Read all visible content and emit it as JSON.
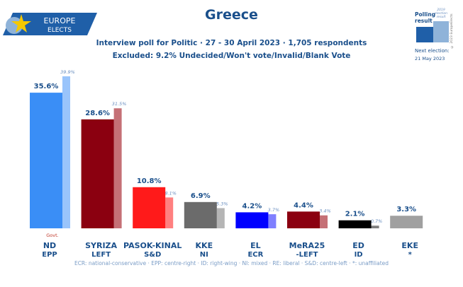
{
  "brand": {
    "line1": "EUROPE",
    "line2": "ELECTS"
  },
  "legend_box": {
    "polling": "Polling result",
    "election": "2019 election result",
    "copyright": "© 2023 EuropeElects",
    "next_label": "Next election:",
    "next_date": "21 May 2023"
  },
  "chart_data": {
    "type": "bar",
    "title": "Greece",
    "subtitle": "Interview poll for Politic · 27 - 30 April 2023 · 1,705 respondents",
    "excluded": "Excluded: 9.2% Undecided/Won't vote/Invalid/Blank Vote",
    "categories": [
      "ND",
      "SYRIZA",
      "PASOK-KINAL",
      "KKE",
      "EL",
      "MeRA25",
      "ED",
      "EKE"
    ],
    "groups": [
      "EPP",
      "LEFT",
      "S&D",
      "NI",
      "ECR",
      "-LEFT",
      "ID",
      "*"
    ],
    "series": [
      {
        "name": "Polling result",
        "values": [
          35.6,
          28.6,
          10.8,
          6.9,
          4.2,
          4.4,
          2.1,
          3.3
        ],
        "labels": [
          "35.6%",
          "28.6%",
          "10.8%",
          "6.9%",
          "4.2%",
          "4.4%",
          "2.1%",
          "3.3%"
        ]
      },
      {
        "name": "2019 election result",
        "values": [
          39.9,
          31.5,
          8.1,
          5.3,
          3.7,
          3.4,
          0.7,
          null
        ],
        "labels": [
          "39.9%",
          "31.5%",
          "8.1%",
          "5.3%",
          "3.7%",
          "3.4%",
          "0.7%",
          ""
        ]
      }
    ],
    "colors": [
      "#3a8ef6",
      "#8b0010",
      "#ff1a1a",
      "#6b6b6b",
      "#0000ff",
      "#8b0010",
      "#000000",
      "#a0a0a0"
    ],
    "prev_colors": [
      "#99c4fb",
      "#c57076",
      "#ff8080",
      "#b5b5b5",
      "#7f7fff",
      "#c57076",
      "#7f7f7f",
      ""
    ],
    "annotation": "Govt.",
    "footnote": "ECR: national-conservative · EPP: centre-right · ID: right-wing · NI: mixed · RE: liberal · S&D: centre-left · *: unaffiliated"
  }
}
